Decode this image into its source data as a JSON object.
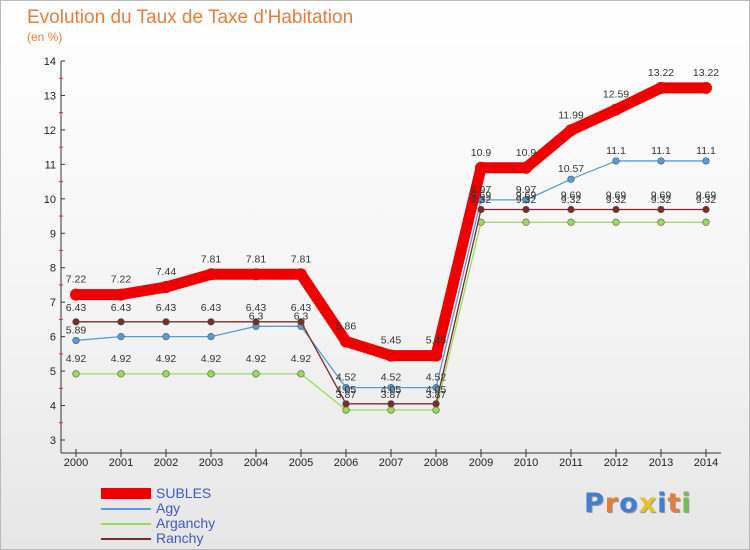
{
  "chart_data": {
    "type": "line",
    "title": "Evolution du Taux de Taxe d'Habitation",
    "subtitle": "(en %)",
    "xlabel": "",
    "ylabel": "",
    "categories": [
      "2000",
      "2001",
      "2002",
      "2003",
      "2004",
      "2005",
      "2006",
      "2007",
      "2008",
      "2009",
      "2010",
      "2011",
      "2012",
      "2013",
      "2014"
    ],
    "ylim": [
      3,
      14
    ],
    "yticks": [
      3,
      4,
      5,
      6,
      7,
      8,
      9,
      10,
      11,
      12,
      13,
      14
    ],
    "grid": false,
    "legend_position": "bottom-left",
    "series": [
      {
        "name": "SUBLES",
        "color": "#ee0000",
        "values": [
          7.22,
          7.22,
          7.44,
          7.81,
          7.81,
          7.81,
          5.86,
          5.45,
          5.45,
          10.9,
          10.9,
          11.99,
          12.59,
          13.22,
          13.22
        ],
        "labels": [
          "7.22",
          "7.22",
          "7.44",
          "7.81",
          "7.81",
          "7.81",
          "5.86",
          "5.45",
          "5.45",
          "10.9",
          "10.9",
          "11.99",
          "12.59",
          "13.22",
          "13.22"
        ]
      },
      {
        "name": "Agy",
        "color": "#5b9bd5",
        "values": [
          5.89,
          6.0,
          6.0,
          6.0,
          6.3,
          6.3,
          4.52,
          4.52,
          4.52,
          9.97,
          9.97,
          10.57,
          11.1,
          11.1,
          11.1
        ],
        "labels": [
          "5.89",
          "",
          "",
          "",
          "6.3",
          "6.3",
          "4.52",
          "4.52",
          "4.52",
          "9.97",
          "9.97",
          "10.57",
          "11.1",
          "11.1",
          "11.1"
        ]
      },
      {
        "name": "Arganchy",
        "color": "#99dd55",
        "values": [
          4.92,
          4.92,
          4.92,
          4.92,
          4.92,
          4.92,
          3.87,
          3.87,
          3.87,
          9.32,
          9.32,
          9.32,
          9.32,
          9.32,
          9.32
        ],
        "labels": [
          "4.92",
          "4.92",
          "4.92",
          "4.92",
          "4.92",
          "4.92",
          "3.87",
          "3.87",
          "3.87",
          "",
          "",
          "",
          "",
          "",
          ""
        ]
      },
      {
        "name": "Ranchy",
        "color": "#7a2b2b",
        "values": [
          6.43,
          6.43,
          6.43,
          6.43,
          6.43,
          6.43,
          4.05,
          4.05,
          4.05,
          9.69,
          9.69,
          9.69,
          9.69,
          9.69,
          9.69
        ],
        "labels": [
          "6.43",
          "6.43",
          "6.43",
          "6.43",
          "6.43",
          "6.43",
          "4.05",
          "4.05",
          "4.05",
          "9.69",
          "9.69",
          "9.69",
          "9.69",
          "9.69",
          "9.69"
        ]
      }
    ]
  },
  "extra_labels": {
    "arganchy_2009_2014": "9.32"
  },
  "brand": {
    "letters": [
      "P",
      "r",
      "o",
      "x",
      "i",
      "t",
      "i"
    ],
    "colors": [
      "#3f7fd6",
      "#e07f3f",
      "#3f7fd6",
      "#e6c22f",
      "#3f7fd6",
      "#e07f3f",
      "#6cc24a"
    ]
  }
}
